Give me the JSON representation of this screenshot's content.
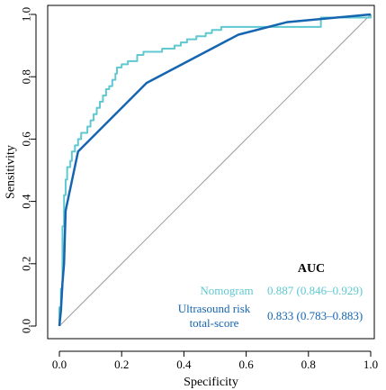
{
  "chart_data": {
    "type": "line",
    "xlabel": "Specificity",
    "ylabel": "Sensitivity",
    "xlim": [
      0,
      1
    ],
    "ylim": [
      0,
      1
    ],
    "x_reversed": false,
    "xticks": [
      "0.0",
      "0.2",
      "0.4",
      "0.6",
      "0.8",
      "1.0"
    ],
    "yticks": [
      "0.0",
      "0.2",
      "0.4",
      "0.6",
      "0.8",
      "1.0"
    ],
    "grid": false,
    "reference_line": {
      "from": [
        0,
        0
      ],
      "to": [
        1,
        1
      ],
      "color": "#9e9e9e"
    },
    "legend": {
      "placement": "bottom-right",
      "title": "AUC"
    },
    "series": [
      {
        "name": "Nomogram",
        "auc_label": "0.887 (0.846–0.929)",
        "color": "#5fc8d0",
        "style": "step",
        "points": [
          [
            0.0,
            0.0
          ],
          [
            0.0,
            0.06
          ],
          [
            0.005,
            0.06
          ],
          [
            0.005,
            0.12
          ],
          [
            0.01,
            0.12
          ],
          [
            0.01,
            0.32
          ],
          [
            0.015,
            0.32
          ],
          [
            0.015,
            0.42
          ],
          [
            0.02,
            0.42
          ],
          [
            0.02,
            0.47
          ],
          [
            0.025,
            0.47
          ],
          [
            0.025,
            0.51
          ],
          [
            0.035,
            0.51
          ],
          [
            0.035,
            0.53
          ],
          [
            0.04,
            0.53
          ],
          [
            0.04,
            0.56
          ],
          [
            0.05,
            0.56
          ],
          [
            0.05,
            0.58
          ],
          [
            0.06,
            0.58
          ],
          [
            0.06,
            0.6
          ],
          [
            0.07,
            0.6
          ],
          [
            0.07,
            0.62
          ],
          [
            0.09,
            0.62
          ],
          [
            0.09,
            0.64
          ],
          [
            0.1,
            0.64
          ],
          [
            0.1,
            0.66
          ],
          [
            0.11,
            0.66
          ],
          [
            0.11,
            0.68
          ],
          [
            0.12,
            0.68
          ],
          [
            0.12,
            0.7
          ],
          [
            0.13,
            0.7
          ],
          [
            0.13,
            0.72
          ],
          [
            0.14,
            0.72
          ],
          [
            0.14,
            0.74
          ],
          [
            0.15,
            0.74
          ],
          [
            0.15,
            0.76
          ],
          [
            0.16,
            0.76
          ],
          [
            0.16,
            0.77
          ],
          [
            0.17,
            0.77
          ],
          [
            0.17,
            0.79
          ],
          [
            0.18,
            0.79
          ],
          [
            0.18,
            0.81
          ],
          [
            0.185,
            0.81
          ],
          [
            0.185,
            0.83
          ],
          [
            0.2,
            0.83
          ],
          [
            0.2,
            0.84
          ],
          [
            0.22,
            0.84
          ],
          [
            0.22,
            0.85
          ],
          [
            0.25,
            0.85
          ],
          [
            0.25,
            0.87
          ],
          [
            0.27,
            0.87
          ],
          [
            0.27,
            0.88
          ],
          [
            0.33,
            0.88
          ],
          [
            0.33,
            0.89
          ],
          [
            0.37,
            0.89
          ],
          [
            0.37,
            0.9
          ],
          [
            0.39,
            0.9
          ],
          [
            0.39,
            0.91
          ],
          [
            0.41,
            0.91
          ],
          [
            0.41,
            0.92
          ],
          [
            0.44,
            0.92
          ],
          [
            0.44,
            0.93
          ],
          [
            0.47,
            0.93
          ],
          [
            0.47,
            0.94
          ],
          [
            0.49,
            0.94
          ],
          [
            0.49,
            0.95
          ],
          [
            0.52,
            0.95
          ],
          [
            0.52,
            0.96
          ],
          [
            0.84,
            0.96
          ],
          [
            0.84,
            0.99
          ],
          [
            1.0,
            0.99
          ],
          [
            1.0,
            1.0
          ]
        ]
      },
      {
        "name": "Ultrasound risk total-score",
        "auc_label": "0.833 (0.783–0.883)",
        "color": "#1565b0",
        "style": "line",
        "points": [
          [
            0.0,
            0.0
          ],
          [
            0.005,
            0.05
          ],
          [
            0.01,
            0.14
          ],
          [
            0.015,
            0.2
          ],
          [
            0.02,
            0.37
          ],
          [
            0.06,
            0.56
          ],
          [
            0.28,
            0.78
          ],
          [
            0.575,
            0.935
          ],
          [
            0.73,
            0.975
          ],
          [
            1.0,
            1.0
          ]
        ]
      }
    ]
  }
}
